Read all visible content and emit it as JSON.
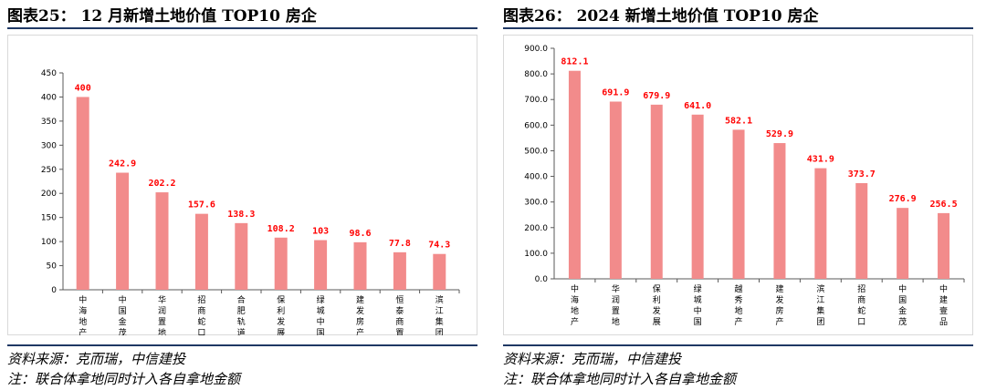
{
  "colors": {
    "bar": "#f28b8b",
    "label": "#ff0000",
    "axis": "#595959",
    "rule": "#1f3864"
  },
  "chart_data": [
    {
      "type": "bar",
      "title": "图表25：  12 月新增土地价值 TOP10 房企",
      "categories": [
        "中海地产",
        "中国金茂",
        "华润置地",
        "招商蛇口",
        "合肥轨道",
        "保利发展",
        "绿城中国",
        "建发房产",
        "恒泰商置",
        "滨江集团"
      ],
      "values": [
        400,
        242.9,
        202.2,
        157.6,
        138.3,
        108.2,
        103,
        98.6,
        77.8,
        74.3
      ],
      "value_labels": [
        "400",
        "242.9",
        "202.2",
        "157.6",
        "138.3",
        "108.2",
        "103",
        "98.6",
        "77.8",
        "74.3"
      ],
      "yticks": [
        "0",
        "50",
        "100",
        "150",
        "200",
        "250",
        "300",
        "350",
        "400",
        "450"
      ],
      "ylim": [
        0,
        450
      ],
      "grid": false,
      "source": "资料来源：克而瑞，中信建投",
      "note": "注：联合体拿地同时计入各自拿地金额"
    },
    {
      "type": "bar",
      "title": "图表26：  2024 新增土地价值 TOP10 房企",
      "categories": [
        "中海地产",
        "华润置地",
        "保利发展",
        "绿城中国",
        "越秀地产",
        "建发房产",
        "滨江集团",
        "招商蛇口",
        "中国金茂",
        "中建壹品"
      ],
      "values": [
        812.1,
        691.9,
        679.9,
        641.0,
        582.1,
        529.9,
        431.9,
        373.7,
        276.9,
        256.5
      ],
      "value_labels": [
        "812.1",
        "691.9",
        "679.9",
        "641.0",
        "582.1",
        "529.9",
        "431.9",
        "373.7",
        "276.9",
        "256.5"
      ],
      "yticks": [
        "0.0",
        "100.0",
        "200.0",
        "300.0",
        "400.0",
        "500.0",
        "600.0",
        "700.0",
        "800.0",
        "900.0"
      ],
      "ylim": [
        0,
        900
      ],
      "grid": false,
      "source": "资料来源：克而瑞，中信建投",
      "note": "注：联合体拿地同时计入各自拿地金额"
    }
  ]
}
